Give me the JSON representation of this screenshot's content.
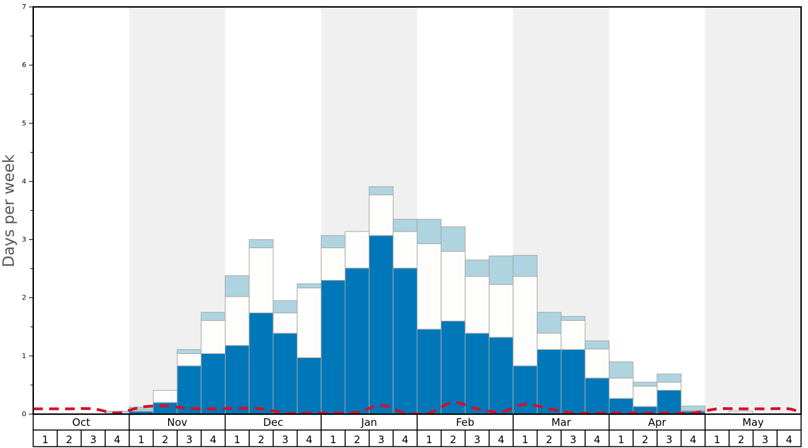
{
  "chart_data": {
    "type": "bar",
    "ylabel": "Days per week",
    "ylim": [
      0,
      7
    ],
    "yticks": [
      "0",
      "1",
      "2",
      "3",
      "4",
      "5",
      "6",
      "7"
    ],
    "months": [
      "Oct",
      "Nov",
      "Dec",
      "Jan",
      "Feb",
      "Mar",
      "Apr",
      "May"
    ],
    "weeks": [
      "1",
      "2",
      "3",
      "4"
    ],
    "colors": {
      "bottom": "#0077b8",
      "middle": "#fdfdfb",
      "top": "#aed4e0",
      "bar_stroke": "#a8a8a8",
      "line": "#d0102e",
      "band": "#f0f0f0"
    },
    "series": [
      {
        "values": [
          0,
          0,
          0,
          0,
          0.05,
          0.2,
          0.83,
          1.04,
          1.18,
          1.74,
          1.39,
          0.97,
          2.3,
          2.51,
          3.07,
          2.51,
          1.46,
          1.6,
          1.39,
          1.32,
          0.83,
          1.11,
          1.11,
          0.62,
          0.27,
          0.13,
          0.41,
          0.05,
          0,
          0,
          0,
          0
        ]
      },
      {
        "values": [
          0,
          0,
          0,
          0,
          0.02,
          0.21,
          0.21,
          0.57,
          0.84,
          1.12,
          0.35,
          1.2,
          0.56,
          0.63,
          0.7,
          0.63,
          1.47,
          1.2,
          0.98,
          0.91,
          1.54,
          0.28,
          0.5,
          0.5,
          0.35,
          0.35,
          0.14,
          0.01,
          0,
          0.05,
          0,
          0
        ]
      },
      {
        "values": [
          0,
          0,
          0,
          0.05,
          0.05,
          0,
          0.07,
          0.14,
          0.36,
          0.14,
          0.21,
          0.07,
          0.21,
          0,
          0.14,
          0.21,
          0.42,
          0.42,
          0.28,
          0.49,
          0.36,
          0.36,
          0.07,
          0.14,
          0.28,
          0.07,
          0.14,
          0.08,
          0,
          0,
          0,
          0
        ]
      },
      {
        "type": "line",
        "values": [
          0.09,
          0.09,
          0.09,
          0.02,
          0.12,
          0.14,
          0.1,
          0.09,
          0.1,
          0.09,
          0.02,
          0.02,
          0.02,
          0.03,
          0.15,
          0.02,
          0.02,
          0.2,
          0.09,
          0.04,
          0.17,
          0.09,
          0.02,
          0.02,
          0.02,
          0.02,
          0.02,
          0.02,
          0.09,
          0.09,
          0.09,
          0.09
        ]
      }
    ]
  }
}
